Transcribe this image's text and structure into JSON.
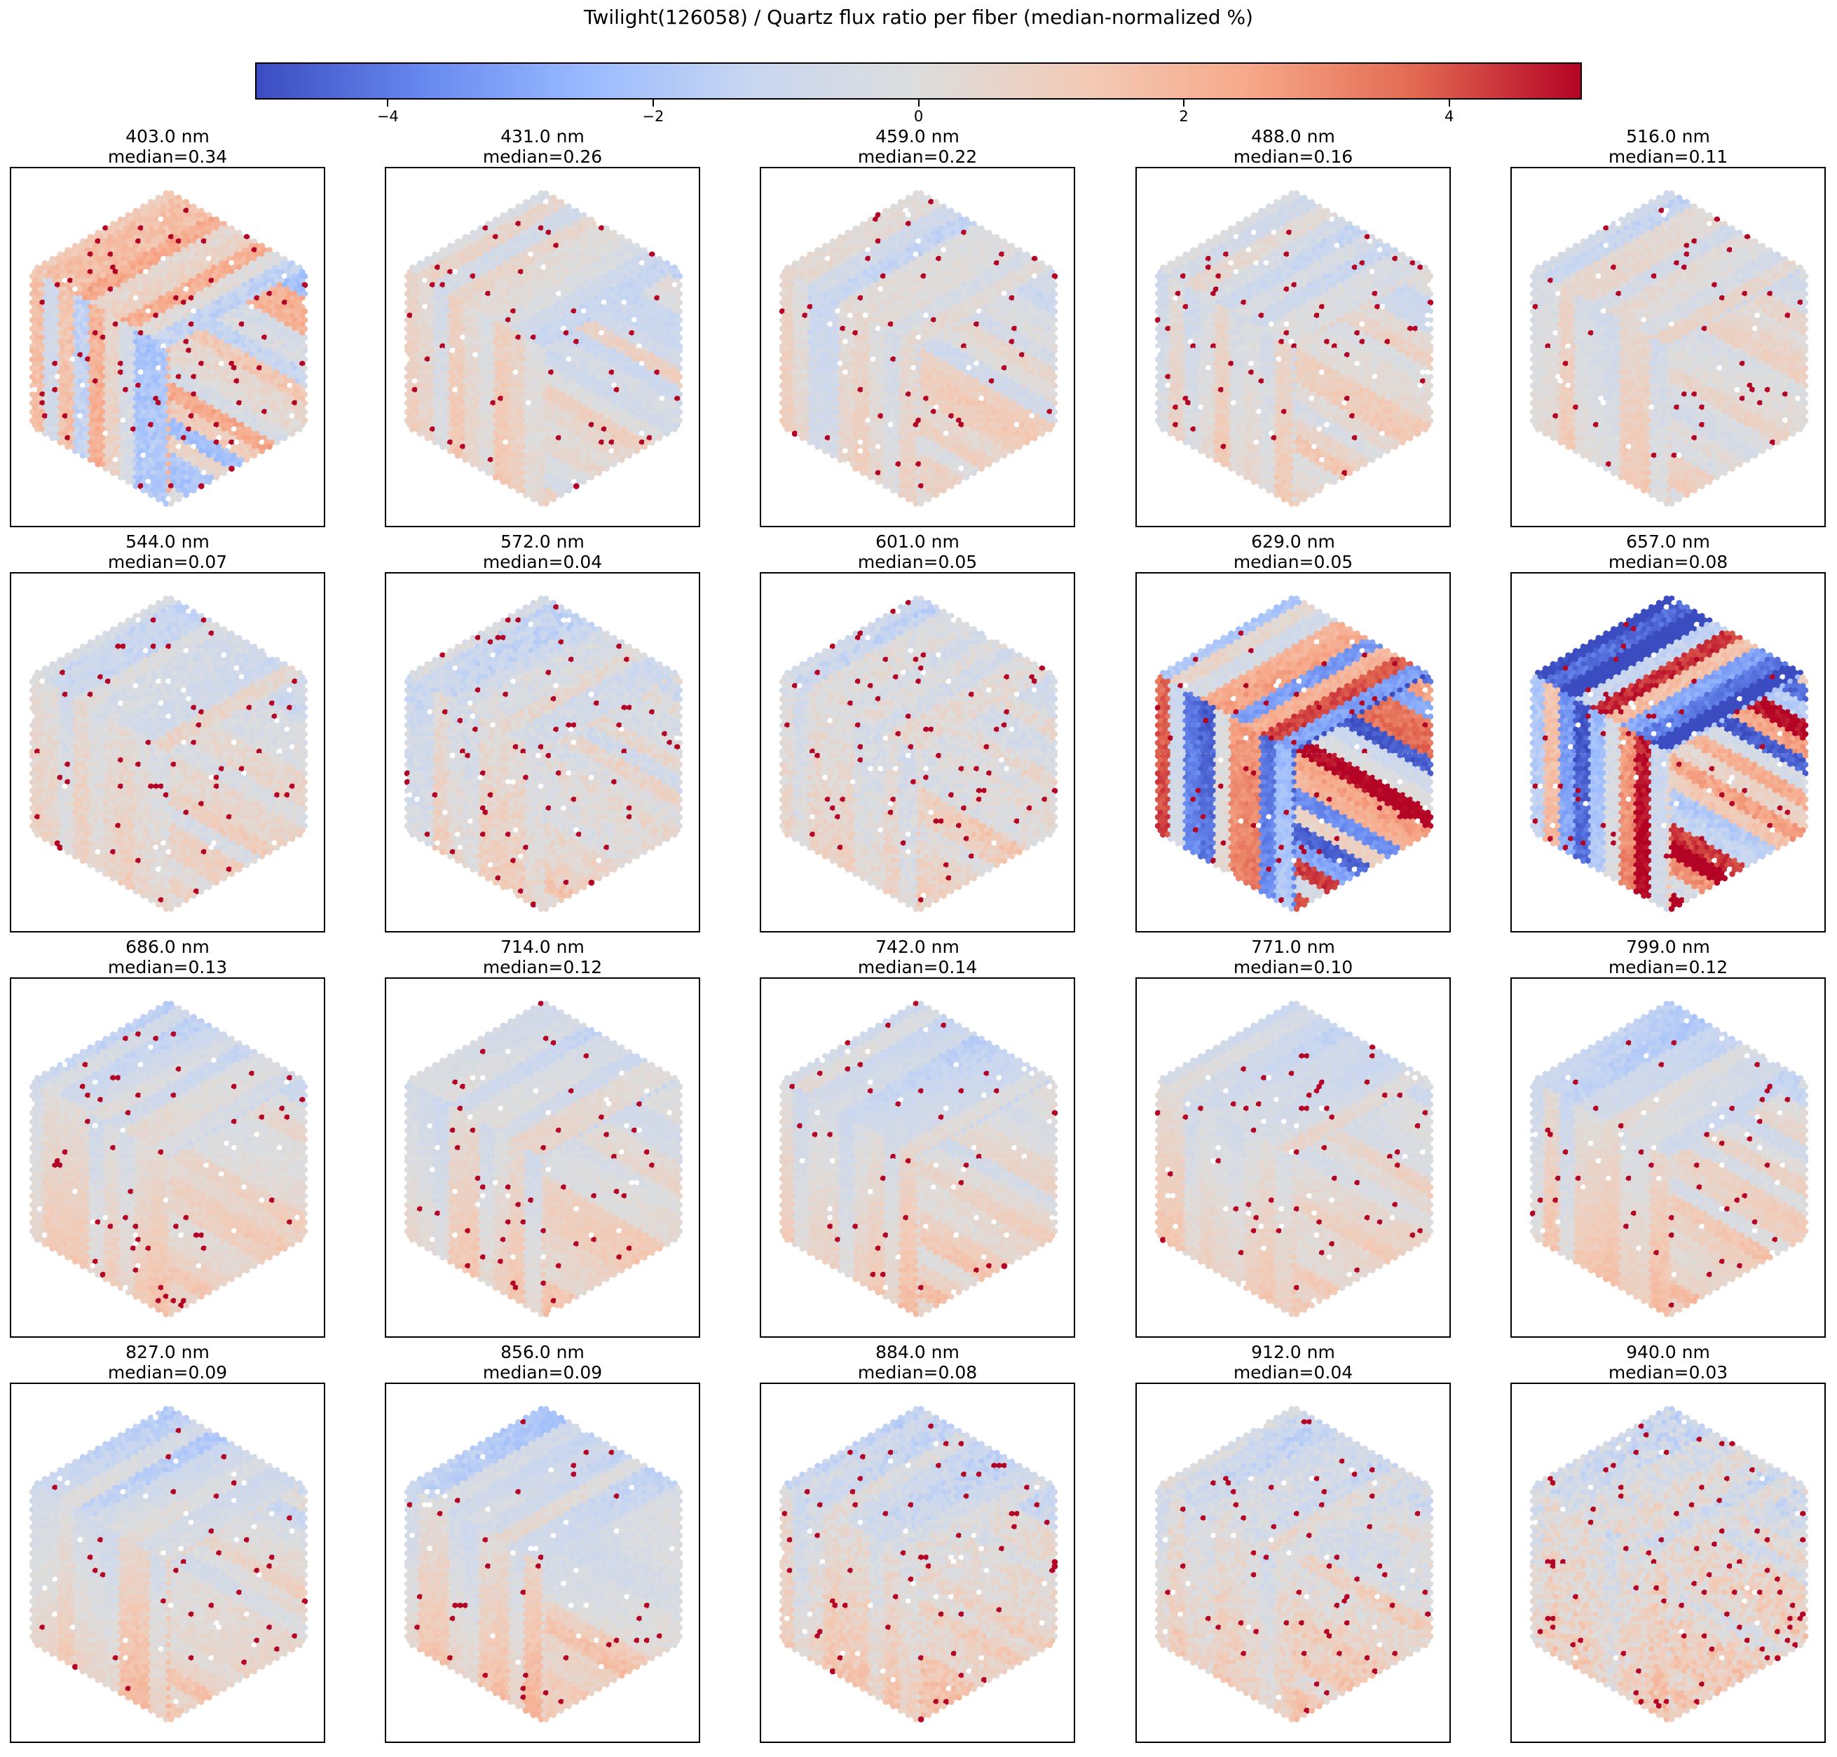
{
  "figure": {
    "title": "Twilight(126058) / Quartz flux ratio per fiber (median-normalized %)"
  },
  "colorbar": {
    "colormap": "coolwarm",
    "range": [
      -5,
      5
    ],
    "ticks": [
      -4,
      -2,
      0,
      2,
      4
    ],
    "tick_labels": [
      "−4",
      "−2",
      "0",
      "2",
      "4"
    ],
    "colors": [
      "#3b4cc0",
      "#6788ee",
      "#9abbff",
      "#c9d7f0",
      "#dddddd",
      "#f2cbb7",
      "#f7a889",
      "#e26952",
      "#b40426"
    ]
  },
  "chart_data": {
    "type": "heatmap",
    "description_layout": "grid of 4 rows x 5 columns of hexagonal fiber-map panels",
    "panels": [
      {
        "wavelength": "403.0 nm",
        "median": "median=0.34",
        "pattern": "stripes",
        "stripe_amplitude": 2.5,
        "gradient": 0.2,
        "noise": 0.8
      },
      {
        "wavelength": "431.0 nm",
        "median": "median=0.26",
        "pattern": "stripes",
        "stripe_amplitude": 1.2,
        "gradient": 0.4,
        "noise": 0.6
      },
      {
        "wavelength": "459.0 nm",
        "median": "median=0.22",
        "pattern": "stripes",
        "stripe_amplitude": 1.0,
        "gradient": 0.5,
        "noise": 0.6
      },
      {
        "wavelength": "488.0 nm",
        "median": "median=0.16",
        "pattern": "stripes",
        "stripe_amplitude": 0.9,
        "gradient": 0.6,
        "noise": 0.6
      },
      {
        "wavelength": "516.0 nm",
        "median": "median=0.11",
        "pattern": "stripes",
        "stripe_amplitude": 0.9,
        "gradient": 0.6,
        "noise": 0.6
      },
      {
        "wavelength": "544.0 nm",
        "median": "median=0.07",
        "pattern": "stripes",
        "stripe_amplitude": 0.8,
        "gradient": 0.6,
        "noise": 0.8
      },
      {
        "wavelength": "572.0 nm",
        "median": "median=0.04",
        "pattern": "stripes",
        "stripe_amplitude": 0.8,
        "gradient": 0.7,
        "noise": 1.0
      },
      {
        "wavelength": "601.0 nm",
        "median": "median=0.05",
        "pattern": "stripes",
        "stripe_amplitude": 0.8,
        "gradient": 0.7,
        "noise": 1.0
      },
      {
        "wavelength": "629.0 nm",
        "median": "median=0.05",
        "pattern": "stripes",
        "stripe_amplitude": 5.0,
        "gradient": 0.5,
        "noise": 0.7
      },
      {
        "wavelength": "657.0 nm",
        "median": "median=0.08",
        "pattern": "stripes",
        "stripe_amplitude": 6.0,
        "gradient": 0.5,
        "noise": 0.8
      },
      {
        "wavelength": "686.0 nm",
        "median": "median=0.13",
        "pattern": "stripes",
        "stripe_amplitude": 0.8,
        "gradient": 1.0,
        "noise": 0.5
      },
      {
        "wavelength": "714.0 nm",
        "median": "median=0.12",
        "pattern": "stripes",
        "stripe_amplitude": 0.8,
        "gradient": 1.0,
        "noise": 0.5
      },
      {
        "wavelength": "742.0 nm",
        "median": "median=0.14",
        "pattern": "stripes",
        "stripe_amplitude": 0.8,
        "gradient": 1.0,
        "noise": 0.5
      },
      {
        "wavelength": "771.0 nm",
        "median": "median=0.10",
        "pattern": "stripes",
        "stripe_amplitude": 0.8,
        "gradient": 1.1,
        "noise": 0.5
      },
      {
        "wavelength": "799.0 nm",
        "median": "median=0.12",
        "pattern": "stripes",
        "stripe_amplitude": 0.8,
        "gradient": 1.1,
        "noise": 0.5
      },
      {
        "wavelength": "827.0 nm",
        "median": "median=0.09",
        "pattern": "stripes",
        "stripe_amplitude": 0.8,
        "gradient": 1.2,
        "noise": 0.6
      },
      {
        "wavelength": "856.0 nm",
        "median": "median=0.09",
        "pattern": "stripes",
        "stripe_amplitude": 0.8,
        "gradient": 1.2,
        "noise": 0.6
      },
      {
        "wavelength": "884.0 nm",
        "median": "median=0.08",
        "pattern": "stripes",
        "stripe_amplitude": 0.7,
        "gradient": 1.0,
        "noise": 1.0
      },
      {
        "wavelength": "912.0 nm",
        "median": "median=0.04",
        "pattern": "stripes",
        "stripe_amplitude": 0.7,
        "gradient": 0.9,
        "noise": 1.1
      },
      {
        "wavelength": "940.0 nm",
        "median": "median=0.03",
        "pattern": "stripes",
        "stripe_amplitude": 0.7,
        "gradient": 0.8,
        "noise": 1.6
      }
    ]
  }
}
